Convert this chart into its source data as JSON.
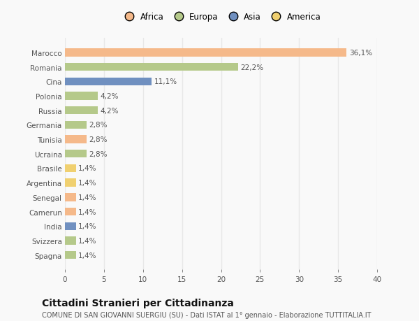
{
  "categories": [
    "Marocco",
    "Romania",
    "Cina",
    "Polonia",
    "Russia",
    "Germania",
    "Tunisia",
    "Ucraina",
    "Brasile",
    "Argentina",
    "Senegal",
    "Camerun",
    "India",
    "Svizzera",
    "Spagna"
  ],
  "values": [
    36.1,
    22.2,
    11.1,
    4.2,
    4.2,
    2.8,
    2.8,
    2.8,
    1.4,
    1.4,
    1.4,
    1.4,
    1.4,
    1.4,
    1.4
  ],
  "labels": [
    "36,1%",
    "22,2%",
    "11,1%",
    "4,2%",
    "4,2%",
    "2,8%",
    "2,8%",
    "2,8%",
    "1,4%",
    "1,4%",
    "1,4%",
    "1,4%",
    "1,4%",
    "1,4%",
    "1,4%"
  ],
  "colors": [
    "#F5B98A",
    "#B5C98A",
    "#7090C0",
    "#B5C98A",
    "#B5C98A",
    "#B5C98A",
    "#F5B98A",
    "#B5C98A",
    "#F0D070",
    "#F0D070",
    "#F5B98A",
    "#F5B98A",
    "#7090C0",
    "#B5C98A",
    "#B5C98A"
  ],
  "legend_labels": [
    "Africa",
    "Europa",
    "Asia",
    "America"
  ],
  "legend_colors": [
    "#F5B98A",
    "#B5C98A",
    "#7090C0",
    "#F0D070"
  ],
  "title": "Cittadini Stranieri per Cittadinanza",
  "subtitle": "COMUNE DI SAN GIOVANNI SUERGIU (SU) - Dati ISTAT al 1° gennaio - Elaborazione TUTTITALIA.IT",
  "xlim": [
    0,
    40
  ],
  "xticks": [
    0,
    5,
    10,
    15,
    20,
    25,
    30,
    35,
    40
  ],
  "background_color": "#f9f9f9",
  "grid_color": "#e8e8e8",
  "title_fontsize": 10,
  "subtitle_fontsize": 7,
  "label_fontsize": 7.5,
  "tick_fontsize": 7.5,
  "bar_height": 0.55
}
